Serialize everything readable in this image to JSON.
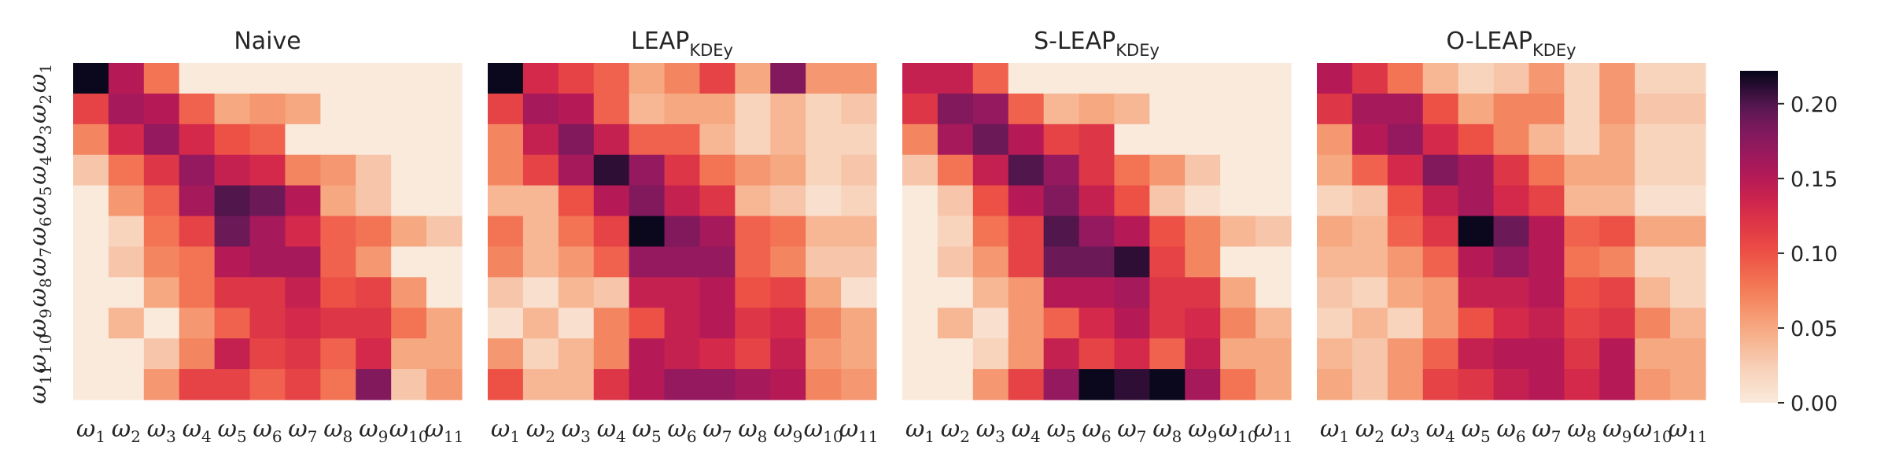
{
  "chart_data": {
    "type": "heatmap",
    "colormap": "rocket_r",
    "vmin": 0.0,
    "vmax": 0.222,
    "categories": [
      "ω1",
      "ω2",
      "ω3",
      "ω4",
      "ω5",
      "ω6",
      "ω7",
      "ω8",
      "ω9",
      "ω10",
      "ω11"
    ],
    "colorbar": {
      "ticks": [
        0.0,
        0.05,
        0.1,
        0.15,
        0.2
      ],
      "tick_labels": [
        "0.00",
        "0.05",
        "0.10",
        "0.15",
        "0.20"
      ]
    },
    "panels": [
      {
        "title": "Naive",
        "title_sub": "",
        "values": [
          [
            0.22,
            0.15,
            0.08,
            0.0,
            0.0,
            0.0,
            0.0,
            0.0,
            0.0,
            0.0,
            0.0
          ],
          [
            0.11,
            0.16,
            0.15,
            0.09,
            0.05,
            0.06,
            0.05,
            0.0,
            0.0,
            0.0,
            0.0
          ],
          [
            0.07,
            0.13,
            0.17,
            0.13,
            0.1,
            0.09,
            0.0,
            0.0,
            0.0,
            0.0,
            0.0
          ],
          [
            0.03,
            0.08,
            0.12,
            0.17,
            0.14,
            0.13,
            0.07,
            0.06,
            0.03,
            0.0,
            0.0
          ],
          [
            0.0,
            0.06,
            0.09,
            0.16,
            0.2,
            0.19,
            0.15,
            0.05,
            0.03,
            0.0,
            0.0
          ],
          [
            0.0,
            0.02,
            0.08,
            0.11,
            0.19,
            0.16,
            0.13,
            0.09,
            0.08,
            0.05,
            0.03
          ],
          [
            0.0,
            0.03,
            0.07,
            0.08,
            0.15,
            0.16,
            0.16,
            0.09,
            0.06,
            0.0,
            0.0
          ],
          [
            0.0,
            0.0,
            0.05,
            0.08,
            0.12,
            0.12,
            0.14,
            0.1,
            0.11,
            0.06,
            0.0
          ],
          [
            0.0,
            0.04,
            0.0,
            0.06,
            0.09,
            0.12,
            0.13,
            0.12,
            0.12,
            0.08,
            0.05
          ],
          [
            0.0,
            0.0,
            0.03,
            0.07,
            0.14,
            0.11,
            0.12,
            0.09,
            0.13,
            0.05,
            0.05
          ],
          [
            0.0,
            0.0,
            0.06,
            0.11,
            0.11,
            0.09,
            0.11,
            0.08,
            0.18,
            0.03,
            0.06
          ]
        ]
      },
      {
        "title": "LEAP",
        "title_sub": "KDEy",
        "values": [
          [
            0.22,
            0.13,
            0.11,
            0.09,
            0.05,
            0.07,
            0.11,
            0.05,
            0.18,
            0.06,
            0.06
          ],
          [
            0.11,
            0.16,
            0.15,
            0.09,
            0.04,
            0.05,
            0.05,
            0.02,
            0.04,
            0.02,
            0.03
          ],
          [
            0.07,
            0.14,
            0.18,
            0.14,
            0.09,
            0.09,
            0.04,
            0.02,
            0.04,
            0.02,
            0.02
          ],
          [
            0.07,
            0.11,
            0.16,
            0.21,
            0.17,
            0.12,
            0.08,
            0.06,
            0.05,
            0.02,
            0.03
          ],
          [
            0.04,
            0.04,
            0.1,
            0.15,
            0.18,
            0.14,
            0.12,
            0.04,
            0.03,
            0.01,
            0.02
          ],
          [
            0.08,
            0.04,
            0.08,
            0.11,
            0.22,
            0.18,
            0.16,
            0.09,
            0.08,
            0.04,
            0.04
          ],
          [
            0.07,
            0.04,
            0.06,
            0.09,
            0.17,
            0.17,
            0.17,
            0.09,
            0.07,
            0.03,
            0.03
          ],
          [
            0.03,
            0.01,
            0.04,
            0.03,
            0.14,
            0.14,
            0.15,
            0.1,
            0.11,
            0.05,
            0.01
          ],
          [
            0.01,
            0.04,
            0.01,
            0.07,
            0.1,
            0.14,
            0.15,
            0.12,
            0.13,
            0.07,
            0.05
          ],
          [
            0.06,
            0.02,
            0.04,
            0.07,
            0.15,
            0.14,
            0.13,
            0.11,
            0.14,
            0.06,
            0.05
          ],
          [
            0.1,
            0.04,
            0.04,
            0.12,
            0.15,
            0.17,
            0.17,
            0.16,
            0.15,
            0.07,
            0.06
          ]
        ]
      },
      {
        "title": "S-LEAP",
        "title_sub": "KDEy",
        "values": [
          [
            0.14,
            0.14,
            0.09,
            0.0,
            0.0,
            0.0,
            0.0,
            0.0,
            0.0,
            0.0,
            0.0
          ],
          [
            0.12,
            0.18,
            0.17,
            0.09,
            0.04,
            0.05,
            0.04,
            0.0,
            0.0,
            0.0,
            0.0
          ],
          [
            0.07,
            0.16,
            0.19,
            0.15,
            0.11,
            0.12,
            0.0,
            0.0,
            0.0,
            0.0,
            0.0
          ],
          [
            0.03,
            0.08,
            0.14,
            0.2,
            0.17,
            0.12,
            0.08,
            0.06,
            0.03,
            0.0,
            0.0
          ],
          [
            0.0,
            0.03,
            0.1,
            0.15,
            0.18,
            0.14,
            0.1,
            0.03,
            0.01,
            0.0,
            0.0
          ],
          [
            0.0,
            0.02,
            0.08,
            0.11,
            0.2,
            0.17,
            0.15,
            0.1,
            0.07,
            0.04,
            0.03
          ],
          [
            0.0,
            0.03,
            0.06,
            0.11,
            0.19,
            0.19,
            0.21,
            0.11,
            0.07,
            0.0,
            0.0
          ],
          [
            0.0,
            0.0,
            0.04,
            0.06,
            0.15,
            0.15,
            0.16,
            0.12,
            0.12,
            0.05,
            0.0
          ],
          [
            0.0,
            0.04,
            0.01,
            0.06,
            0.09,
            0.13,
            0.15,
            0.12,
            0.13,
            0.07,
            0.04
          ],
          [
            0.0,
            0.0,
            0.02,
            0.06,
            0.14,
            0.11,
            0.13,
            0.09,
            0.14,
            0.05,
            0.05
          ],
          [
            0.0,
            0.0,
            0.06,
            0.11,
            0.17,
            0.22,
            0.21,
            0.22,
            0.16,
            0.08,
            0.05
          ]
        ]
      },
      {
        "title": "O-LEAP",
        "title_sub": "KDEy",
        "values": [
          [
            0.15,
            0.12,
            0.08,
            0.04,
            0.02,
            0.03,
            0.06,
            0.02,
            0.06,
            0.02,
            0.02
          ],
          [
            0.12,
            0.16,
            0.16,
            0.1,
            0.05,
            0.07,
            0.07,
            0.02,
            0.06,
            0.03,
            0.03
          ],
          [
            0.06,
            0.15,
            0.17,
            0.13,
            0.1,
            0.07,
            0.04,
            0.02,
            0.05,
            0.02,
            0.02
          ],
          [
            0.05,
            0.09,
            0.13,
            0.18,
            0.16,
            0.12,
            0.08,
            0.05,
            0.05,
            0.02,
            0.02
          ],
          [
            0.02,
            0.03,
            0.1,
            0.14,
            0.16,
            0.13,
            0.11,
            0.04,
            0.04,
            0.01,
            0.01
          ],
          [
            0.05,
            0.04,
            0.09,
            0.12,
            0.22,
            0.19,
            0.15,
            0.09,
            0.1,
            0.05,
            0.05
          ],
          [
            0.04,
            0.04,
            0.06,
            0.09,
            0.15,
            0.17,
            0.15,
            0.08,
            0.07,
            0.02,
            0.02
          ],
          [
            0.03,
            0.02,
            0.05,
            0.06,
            0.14,
            0.14,
            0.15,
            0.1,
            0.11,
            0.04,
            0.02
          ],
          [
            0.02,
            0.04,
            0.02,
            0.06,
            0.1,
            0.13,
            0.14,
            0.11,
            0.12,
            0.07,
            0.04
          ],
          [
            0.04,
            0.03,
            0.06,
            0.09,
            0.14,
            0.15,
            0.15,
            0.12,
            0.15,
            0.05,
            0.05
          ],
          [
            0.05,
            0.03,
            0.06,
            0.11,
            0.12,
            0.14,
            0.15,
            0.13,
            0.15,
            0.06,
            0.05
          ]
        ]
      }
    ]
  }
}
